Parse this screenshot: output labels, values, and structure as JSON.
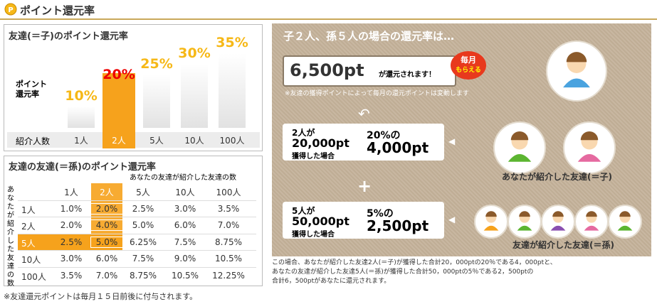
{
  "header": {
    "title": "ポイント還元率"
  },
  "child_chart": {
    "type": "bar",
    "title": "友達(＝子)のポイント還元率",
    "y_label": "ポイント還元率",
    "x_label": "紹介人数",
    "categories": [
      "1人",
      "2人",
      "5人",
      "10人",
      "100人"
    ],
    "values": [
      10,
      20,
      25,
      30,
      35
    ],
    "value_labels": [
      "10%",
      "20%",
      "25%",
      "30%",
      "35%"
    ],
    "highlight": 1,
    "color": "#ffffff",
    "highlight_color": "#f6a21c"
  },
  "grandchild_table": {
    "title": "友達の友達(＝孫)のポイント還元率",
    "column_caption": "あなたの友達が紹介した友達の数",
    "row_caption": "あなたが紹介した友達の数",
    "columns": [
      "1人",
      "2人",
      "5人",
      "10人",
      "100人"
    ],
    "rows": [
      {
        "label": "1人",
        "cells": [
          "1.0%",
          "2.0%",
          "2.5%",
          "3.0%",
          "3.5%"
        ]
      },
      {
        "label": "2人",
        "cells": [
          "2.0%",
          "4.0%",
          "5.0%",
          "6.0%",
          "7.0%"
        ]
      },
      {
        "label": "5人",
        "cells": [
          "2.5%",
          "5.0%",
          "6.25%",
          "7.5%",
          "8.75%"
        ]
      },
      {
        "label": "10人",
        "cells": [
          "3.0%",
          "6.0%",
          "7.5%",
          "9.0%",
          "10.5%"
        ]
      },
      {
        "label": "100人",
        "cells": [
          "3.5%",
          "7.0%",
          "8.75%",
          "10.5%",
          "12.25%"
        ]
      }
    ],
    "highlight_row": 2,
    "highlight_column": 1
  },
  "example": {
    "title": "子２人、孫５人の場合の還元率は…",
    "total": "6,500pt",
    "total_suffix": "が還元されます！",
    "badge": [
      "毎月",
      "もらえる"
    ],
    "note": "※友達の獲得ポイントによって毎月の還元ポイントは変動します",
    "cases": [
      {
        "who": "2人が",
        "earned": "20,000pt",
        "earned_suffix": "獲得した場合",
        "rate": "20%の",
        "points": "4,000pt"
      },
      {
        "who": "5人が",
        "earned": "50,000pt",
        "earned_suffix": "獲得した場合",
        "rate": "5%の",
        "points": "2,500pt"
      }
    ],
    "plus": "+",
    "child_label": "あなたが紹介した友達(＝子)",
    "grandchild_label": "友達が紹介した友達(＝孫)",
    "explanation": [
      "この場合、あなたが紹介した友達2人(＝子)が獲得した合計20，000ptの20％である4，000ptと、",
      "あなたの友達が紹介した友達5人(＝孫)が獲得した合計50，000ptの5％である2，500ptの",
      "合計6，500ptがあなたに還元されます。"
    ]
  },
  "footer_note": "※友達還元ポイントは毎月１５日前後に付与されます。"
}
